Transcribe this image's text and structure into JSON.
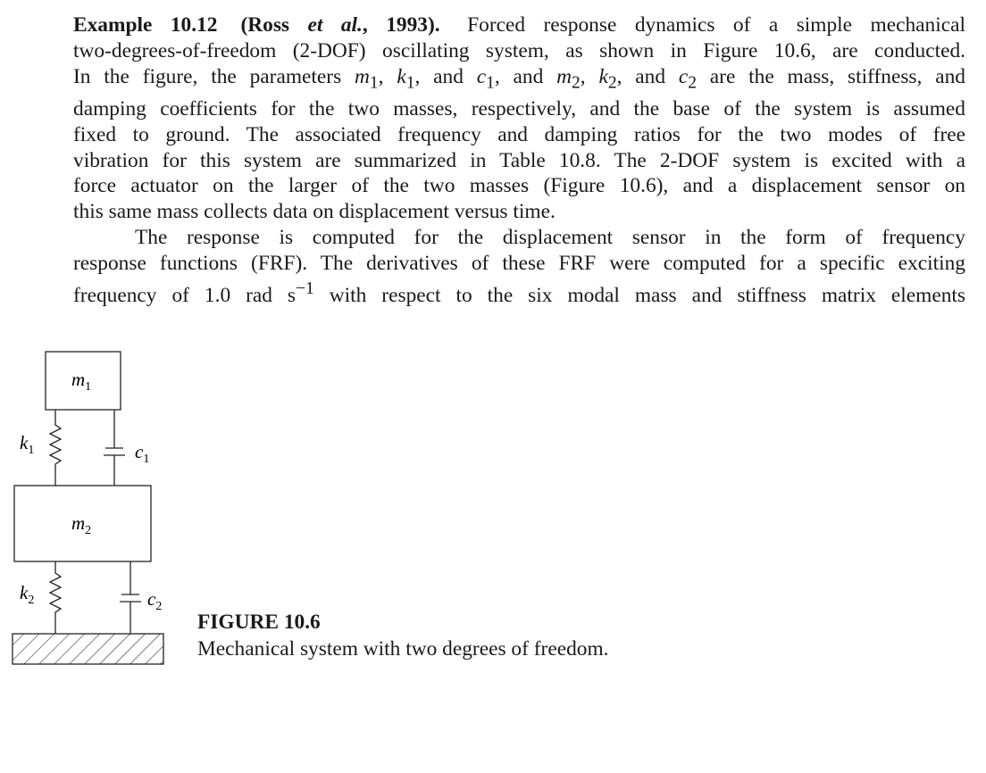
{
  "example": {
    "title": "Example 10.12",
    "citation_open": "(Ross",
    "citation_etal": "et al.",
    "citation_close": ", 1993).",
    "lead": "Forced response dynamics of a simple mechanical"
  },
  "lines": {
    "l2": "two-degrees-of-freedom (2-DOF) oscillating system, as shown in Figure 10.6, are conducted.",
    "l3a": "In the figure, the parameters ",
    "l3b": ", and ",
    "l3c": ", and ",
    "l3d": " are the mass, stiffness, and",
    "l4": "damping coefficients for the two masses, respectively, and the base of the system is assumed",
    "l5": "fixed to ground. The associated frequency and damping ratios for the two modes of free",
    "l6": "vibration for this system are summarized in Table 10.8. The 2-DOF system is excited with a",
    "l7": "force actuator on the larger of the two masses (Figure 10.6), and a displacement sensor on",
    "l8": "this same mass collects data on displacement versus time.",
    "l9": "The response is computed for the displacement sensor in the form of frequency",
    "l10": "response functions (FRF). The derivatives of these FRF were computed for a specific exciting",
    "l11a": "frequency of 1.0 rad s",
    "l11exp": "−1",
    "l11b": " with respect to the six modal mass and stiffness matrix elements"
  },
  "symbols": {
    "m": "m",
    "k": "k",
    "c": "c",
    "one": "1",
    "two": "2",
    "comma": ", "
  },
  "figure": {
    "m1_label": "m",
    "m1_sub": "1",
    "m2_label": "m",
    "m2_sub": "2",
    "k1_label": "k",
    "k1_sub": "1",
    "k2_label": "k",
    "k2_sub": "2",
    "c1_label": "c",
    "c1_sub": "1",
    "c2_label": "c",
    "c2_sub": "2"
  },
  "caption": {
    "title": "FIGURE 10.6",
    "text": "Mechanical system with two degrees of freedom."
  }
}
